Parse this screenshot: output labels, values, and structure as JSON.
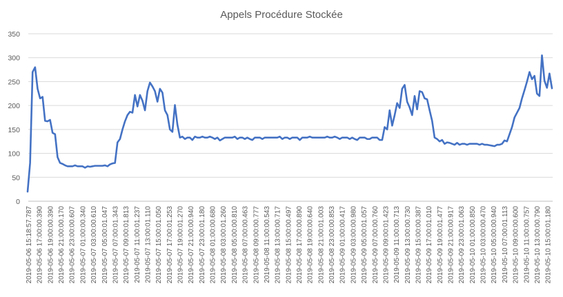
{
  "chart_data": {
    "type": "line",
    "title": "Appels Procédure Stockée",
    "xlabel": "",
    "ylabel": "",
    "ylim": [
      0,
      350
    ],
    "yticks": [
      0,
      50,
      100,
      150,
      200,
      250,
      300,
      350
    ],
    "grid": true,
    "legend": "none",
    "x_labels": [
      "2019-05-06 15:18:57.787",
      "2019-05-06 17:00:00.390",
      "2019-05-06 19:00:00.390",
      "2019-05-06 21:00:00.170",
      "2019-05-06 23:00:00.607",
      "2019-05-07 01:00:00.340",
      "2019-05-07 03:00:00.610",
      "2019-05-07 05:00:01.047",
      "2019-05-07 07:00:01.343",
      "2019-05-07 09:00:01.813",
      "2019-05-07 11:00:01.237",
      "2019-05-07 13:00:01.110",
      "2019-05-07 15:00:01.050",
      "2019-05-07 17:00:01.253",
      "2019-05-07 19:00:01.270",
      "2019-05-07 21:00:00.940",
      "2019-05-07 23:00:01.180",
      "2019-05-08 01:00:00.680",
      "2019-05-08 03:00:01.260",
      "2019-05-08 05:00:00.810",
      "2019-05-08 07:00:00.463",
      "2019-05-08 09:00:00.777",
      "2019-05-08 11:00:00.543",
      "2019-05-08 13:00:00.717",
      "2019-05-08 15:00:00.497",
      "2019-05-08 17:00:00.890",
      "2019-05-08 19:00:00.640",
      "2019-05-08 21:00:01.003",
      "2019-05-08 23:00:00.853",
      "2019-05-09 01:00:00.417",
      "2019-05-09 03:00:00.980",
      "2019-05-09 05:00:01.057",
      "2019-05-09 07:00:00.760",
      "2019-05-09 09:00:01.423",
      "2019-05-09 11:00:00.713",
      "2019-05-09 13:00:00.730",
      "2019-05-09 15:00:00.387",
      "2019-05-09 17:00:01.010",
      "2019-05-09 19:00:01.477",
      "2019-05-09 21:00:00.917",
      "2019-05-09 23:00:01.063",
      "2019-05-10 01:00:00.850",
      "2019-05-10 03:00:00.470",
      "2019-05-10 05:00:00.940",
      "2019-05-10 07:00:01.113",
      "2019-05-10 09:00:00.600",
      "2019-05-10 11:00:00.757",
      "2019-05-10 13:00:00.790",
      "2019-05-10 15:00:01.180"
    ],
    "series": [
      {
        "color": "#4472c4",
        "values": [
          20,
          80,
          270,
          280,
          235,
          215,
          218,
          168,
          167,
          170,
          143,
          140,
          92,
          80,
          78,
          75,
          73,
          73,
          73,
          75,
          73,
          73,
          73,
          70,
          73,
          72,
          73,
          74,
          74,
          74,
          74,
          75,
          73,
          77,
          79,
          80,
          123,
          130,
          150,
          167,
          180,
          187,
          185,
          222,
          198,
          222,
          210,
          190,
          230,
          248,
          240,
          230,
          208,
          235,
          227,
          190,
          180,
          150,
          145,
          201,
          160,
          133,
          135,
          130,
          133,
          133,
          128,
          135,
          133,
          133,
          135,
          133,
          133,
          135,
          133,
          130,
          133,
          127,
          130,
          133,
          133,
          133,
          133,
          135,
          130,
          133,
          133,
          130,
          133,
          130,
          128,
          133,
          133,
          133,
          130,
          133,
          133,
          133,
          133,
          133,
          133,
          135,
          130,
          133,
          133,
          130,
          133,
          133,
          133,
          128,
          133,
          133,
          133,
          135,
          133,
          133,
          133,
          133,
          133,
          133,
          135,
          133,
          133,
          135,
          133,
          130,
          133,
          133,
          133,
          130,
          133,
          130,
          128,
          133,
          133,
          133,
          130,
          130,
          133,
          133,
          133,
          128,
          128,
          155,
          150,
          190,
          158,
          180,
          205,
          195,
          235,
          243,
          208,
          196,
          180,
          220,
          192,
          230,
          228,
          215,
          213,
          190,
          168,
          133,
          130,
          125,
          128,
          120,
          123,
          122,
          120,
          118,
          122,
          118,
          120,
          120,
          118,
          120,
          120,
          120,
          120,
          118,
          120,
          118,
          118,
          117,
          116,
          115,
          118,
          118,
          120,
          127,
          125,
          140,
          155,
          175,
          185,
          195,
          215,
          232,
          250,
          270,
          255,
          262,
          225,
          220,
          305,
          252,
          237,
          267,
          236
        ]
      }
    ]
  }
}
